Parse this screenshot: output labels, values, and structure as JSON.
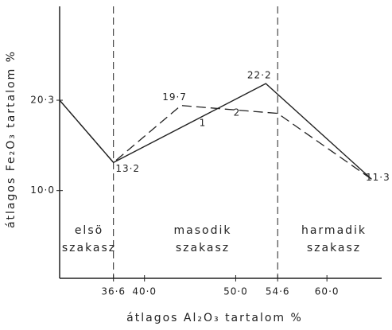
{
  "chart_data": {
    "type": "line",
    "xlabel": "átlagos Al₂O₃ tartalom %",
    "ylabel": "átlagos Fe₂O₃ tartalom %",
    "xlim": [
      30.7,
      66
    ],
    "ylim": [
      0,
      31
    ],
    "xticks": [
      {
        "value": 36.6,
        "label": "36·6"
      },
      {
        "value": 40.0,
        "label": "40·0"
      },
      {
        "value": 50.0,
        "label": "50·0"
      },
      {
        "value": 54.6,
        "label": "54·6"
      },
      {
        "value": 60.0,
        "label": "60·0"
      }
    ],
    "yticks": [
      {
        "value": 10.0,
        "label": "10·0"
      },
      {
        "value": 20.3,
        "label": "20·3"
      }
    ],
    "dividers": [
      0,
      3
    ],
    "sections": [
      [
        "elsö",
        "szakasz"
      ],
      [
        "masodik",
        "szakasz"
      ],
      [
        "harmadik",
        "szakasz"
      ]
    ],
    "series": [
      {
        "name": "1",
        "color": "#222",
        "dashed": false,
        "x": [
          30.7,
          36.6,
          53.3,
          64.9
        ],
        "values": [
          20.3,
          13.2,
          22.2,
          11.3
        ],
        "value_labels": [
          null,
          "13·2",
          "22·2",
          "11·3"
        ]
      },
      {
        "name": "2",
        "color": "#222",
        "dashed": true,
        "x": [
          30.7,
          36.6,
          44.0,
          54.6,
          64.9
        ],
        "values": [
          20.3,
          13.2,
          19.7,
          18.8,
          11.3
        ],
        "value_labels": [
          null,
          null,
          "19·7",
          null,
          null
        ]
      }
    ]
  }
}
